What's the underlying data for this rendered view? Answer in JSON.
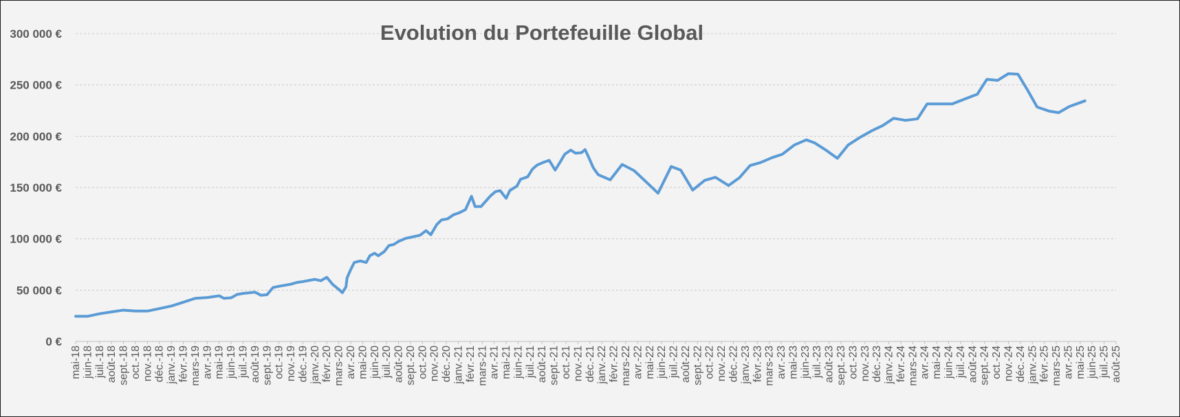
{
  "chart_data": {
    "type": "line",
    "title": "Evolution du Portefeuille Global",
    "xlabel": "",
    "ylabel": "",
    "ylim": [
      0,
      300000
    ],
    "yticks": [
      0,
      50000,
      100000,
      150000,
      200000,
      250000,
      300000
    ],
    "ytick_labels": [
      "0 €",
      "50 000 €",
      "100 000 €",
      "150 000 €",
      "200 000 €",
      "250 000 €",
      "300 000 €"
    ],
    "grid": true,
    "legend": "none",
    "line_color": "#5b9bd5",
    "categories": [
      "mai-18",
      "juin-18",
      "juil.-18",
      "août-18",
      "sept.-18",
      "oct.-18",
      "nov.-18",
      "déc.-18",
      "janv.-19",
      "févr.-19",
      "mars-19",
      "avr.-19",
      "mai-19",
      "juin-19",
      "juil.-19",
      "août-19",
      "sept.-19",
      "oct.-19",
      "nov.-19",
      "déc.-19",
      "janv.-20",
      "févr.-20",
      "mars-20",
      "avr.-20",
      "mai-20",
      "juin-20",
      "juil.-20",
      "août-20",
      "sept.-20",
      "oct.-20",
      "nov.-20",
      "déc.-20",
      "janv.-21",
      "févr.-21",
      "mars-21",
      "avr.-21",
      "mai-21",
      "juin-21",
      "juil.-21",
      "août-21",
      "sept.-21",
      "oct.-21",
      "nov.-21",
      "déc.-21",
      "janv.-22",
      "févr.-22",
      "mars-22",
      "avr.-22",
      "mai-22",
      "juin-22",
      "juil.-22",
      "août-22",
      "sept.-22",
      "oct.-22",
      "nov.-22",
      "déc.-22",
      "janv.-23",
      "févr.-23",
      "mars-23",
      "avr.-23",
      "mai-23",
      "juin-23",
      "juil.-23",
      "août-23",
      "sept.-23",
      "oct.-23",
      "nov.-23",
      "déc.-23",
      "janv.-24",
      "févr.-24",
      "mars-24",
      "avr.-24",
      "mai-24",
      "juin-24",
      "juil.-24",
      "août-24",
      "sept.-24",
      "oct.-24",
      "nov.-24",
      "déc.-24",
      "janv.-25",
      "févr.-25",
      "mars-25",
      "avr.-25",
      "mai-25",
      "juin-25",
      "juil.-25",
      "août-25"
    ],
    "series": [
      {
        "name": "Portefeuille Global",
        "points": [
          [
            0,
            24500
          ],
          [
            1,
            24500
          ],
          [
            2,
            27000
          ],
          [
            3,
            28800
          ],
          [
            4,
            30500
          ],
          [
            5,
            29600
          ],
          [
            6,
            29600
          ],
          [
            7,
            32000
          ],
          [
            8,
            34500
          ],
          [
            9,
            38200
          ],
          [
            10,
            42000
          ],
          [
            11,
            42800
          ],
          [
            12,
            44500
          ],
          [
            12.4,
            42000
          ],
          [
            13,
            42500
          ],
          [
            13.5,
            45800
          ],
          [
            14,
            46800
          ],
          [
            15,
            48000
          ],
          [
            15.5,
            45000
          ],
          [
            16,
            45500
          ],
          [
            16.5,
            52500
          ],
          [
            17,
            53800
          ],
          [
            18,
            55800
          ],
          [
            18.5,
            57500
          ],
          [
            19,
            58300
          ],
          [
            20,
            60500
          ],
          [
            20.5,
            59200
          ],
          [
            21,
            62500
          ],
          [
            21.5,
            55500
          ],
          [
            22,
            50800
          ],
          [
            22.3,
            47500
          ],
          [
            22.6,
            53000
          ],
          [
            22.7,
            62000
          ],
          [
            23,
            70000
          ],
          [
            23.3,
            77000
          ],
          [
            23.8,
            78500
          ],
          [
            24.3,
            77000
          ],
          [
            24.6,
            83500
          ],
          [
            25,
            86000
          ],
          [
            25.3,
            83500
          ],
          [
            25.8,
            87500
          ],
          [
            26.2,
            93500
          ],
          [
            26.6,
            94500
          ],
          [
            27,
            97500
          ],
          [
            27.6,
            100500
          ],
          [
            28.2,
            102000
          ],
          [
            28.8,
            103500
          ],
          [
            29.3,
            108000
          ],
          [
            29.7,
            104000
          ],
          [
            30.2,
            114000
          ],
          [
            30.6,
            118500
          ],
          [
            31.1,
            119500
          ],
          [
            31.6,
            123500
          ],
          [
            32.1,
            125500
          ],
          [
            32.6,
            128500
          ],
          [
            33.1,
            141500
          ],
          [
            33.4,
            131500
          ],
          [
            33.9,
            131500
          ],
          [
            34.7,
            142000
          ],
          [
            35.1,
            146000
          ],
          [
            35.5,
            147000
          ],
          [
            36,
            139500
          ],
          [
            36.3,
            147000
          ],
          [
            36.9,
            151500
          ],
          [
            37.2,
            158000
          ],
          [
            37.8,
            160500
          ],
          [
            38.2,
            168000
          ],
          [
            38.6,
            172000
          ],
          [
            39.1,
            174500
          ],
          [
            39.6,
            176500
          ],
          [
            40.1,
            167000
          ],
          [
            40.6,
            176500
          ],
          [
            40.9,
            182500
          ],
          [
            41.4,
            186500
          ],
          [
            41.8,
            183500
          ],
          [
            42.3,
            184000
          ],
          [
            42.6,
            187000
          ],
          [
            42.9,
            179500
          ],
          [
            43.3,
            169000
          ],
          [
            43.7,
            162500
          ],
          [
            44.7,
            157500
          ],
          [
            45.7,
            172500
          ],
          [
            46.7,
            166500
          ],
          [
            47.8,
            154500
          ],
          [
            48.7,
            144500
          ],
          [
            49.8,
            170500
          ],
          [
            50.6,
            167000
          ],
          [
            51.6,
            147500
          ],
          [
            52.6,
            157000
          ],
          [
            53.5,
            160000
          ],
          [
            54.6,
            152000
          ],
          [
            55.5,
            159500
          ],
          [
            56.4,
            171500
          ],
          [
            57.3,
            174500
          ],
          [
            58.2,
            179000
          ],
          [
            59.1,
            182500
          ],
          [
            60.1,
            191500
          ],
          [
            61.1,
            196500
          ],
          [
            61.8,
            193500
          ],
          [
            62.8,
            186000
          ],
          [
            63.7,
            178500
          ],
          [
            64.6,
            191500
          ],
          [
            65.6,
            199000
          ],
          [
            66.6,
            205500
          ],
          [
            67.5,
            210500
          ],
          [
            68.4,
            217500
          ],
          [
            69.4,
            215500
          ],
          [
            70.4,
            217000
          ],
          [
            71.2,
            231500
          ],
          [
            72.4,
            231500
          ],
          [
            73.3,
            231500
          ],
          [
            74.5,
            237000
          ],
          [
            75.4,
            241000
          ],
          [
            76.2,
            255500
          ],
          [
            77.1,
            254500
          ],
          [
            78,
            261000
          ],
          [
            78.8,
            260500
          ],
          [
            79.6,
            245000
          ],
          [
            80.4,
            228500
          ],
          [
            81.4,
            224500
          ],
          [
            82.2,
            223000
          ],
          [
            83.1,
            229000
          ],
          [
            84.4,
            234500
          ]
        ]
      }
    ]
  }
}
